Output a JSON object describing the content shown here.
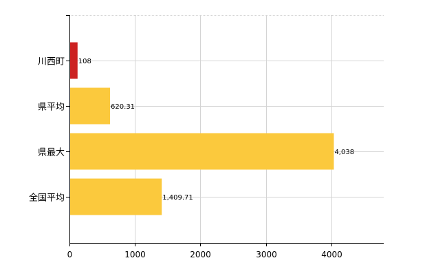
{
  "chart_data": {
    "type": "bar",
    "orientation": "horizontal",
    "categories": [
      "川西町",
      "県平均",
      "県最大",
      "全国平均"
    ],
    "values": [
      108,
      620.31,
      4038,
      1409.71
    ],
    "value_labels": [
      "108",
      "620.31",
      "4,038",
      "1,409.71"
    ],
    "bar_colors": [
      "#cc2222",
      "#fbc93d",
      "#fbc93d",
      "#fbc93d"
    ],
    "xlim": [
      0,
      4800
    ],
    "x_ticks": [
      0,
      1000,
      2000,
      3000,
      4000
    ],
    "x_tick_labels": [
      "0",
      "1000",
      "2000",
      "3000",
      "4000"
    ],
    "grid": true,
    "legend": "none",
    "title": "",
    "xlabel": "",
    "ylabel": ""
  },
  "colors": {
    "grid": "#d4d4d4",
    "axis": "#000000",
    "text": "#000000"
  }
}
